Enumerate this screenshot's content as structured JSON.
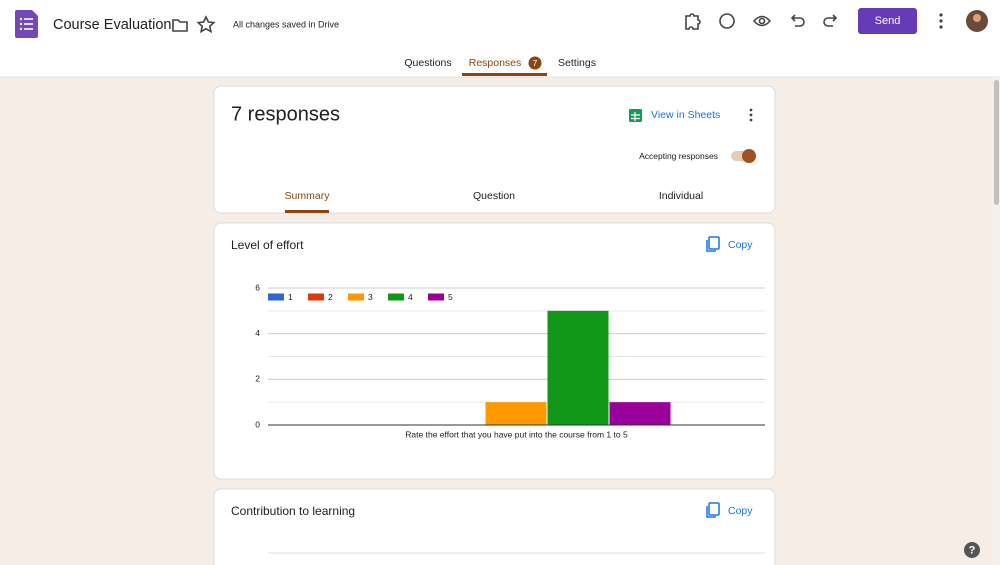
{
  "header": {
    "title": "Course Evaluation",
    "save_status": "All changes saved in Drive",
    "send_button": "Send"
  },
  "tabs": {
    "items": [
      "Questions",
      "Responses",
      "Settings"
    ],
    "response_count": "7"
  },
  "summary": {
    "heading": "7 responses",
    "view_in_sheets": "View in Sheets",
    "accepting_label": "Accepting responses",
    "view_tabs": [
      "Summary",
      "Question",
      "Individual"
    ]
  },
  "questions": [
    {
      "title": "Level of effort",
      "copy": "Copy"
    },
    {
      "title": "Contribution to learning",
      "copy": "Copy"
    }
  ],
  "chart_data": {
    "type": "bar",
    "categories": [
      "Rate the effort that you have put into the course from 1 to 5"
    ],
    "series": [
      {
        "name": "1",
        "color": "#3366cc",
        "values": [
          0
        ]
      },
      {
        "name": "2",
        "color": "#dc3912",
        "values": [
          0
        ]
      },
      {
        "name": "3",
        "color": "#ff9900",
        "values": [
          1
        ]
      },
      {
        "name": "4",
        "color": "#109618",
        "values": [
          5
        ]
      },
      {
        "name": "5",
        "color": "#990099",
        "values": [
          1
        ]
      }
    ],
    "ylim": [
      0,
      6
    ],
    "yticks": [
      0,
      2,
      4,
      6
    ],
    "minor_yticks": [
      1,
      3,
      5
    ],
    "grid": true,
    "legend": "top-left"
  }
}
